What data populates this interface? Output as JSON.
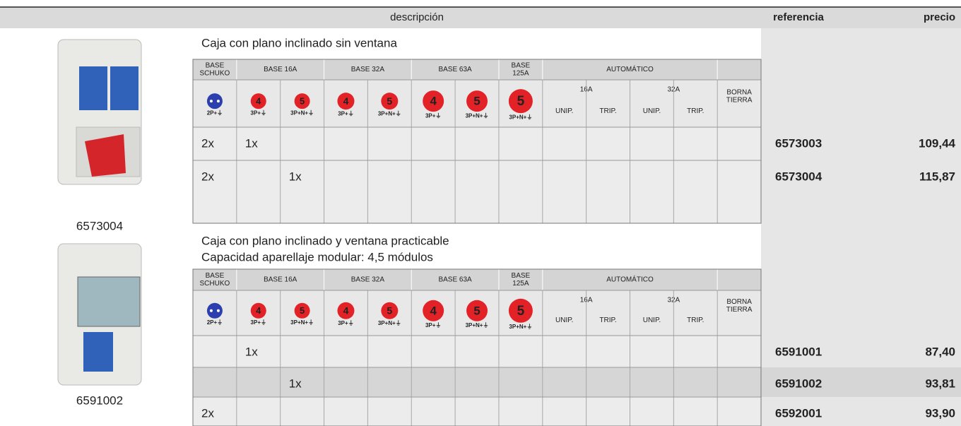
{
  "header": {
    "description": "descripción",
    "reference": "referencia",
    "price": "precio"
  },
  "products": [
    {
      "caption": "6573004"
    },
    {
      "caption": "6591002"
    }
  ],
  "sections": [
    {
      "title_lines": [
        "Caja con plano inclinado sin ventana"
      ],
      "groups": [
        {
          "lines": [
            "BASE",
            "SCHUKO"
          ],
          "span": 1
        },
        {
          "lines": [
            "BASE 16A"
          ],
          "span": 2
        },
        {
          "lines": [
            "BASE 32A"
          ],
          "span": 2
        },
        {
          "lines": [
            "BASE 63A"
          ],
          "span": 2
        },
        {
          "lines": [
            "BASE",
            "125A"
          ],
          "span": 1
        },
        {
          "lines": [
            "AUTOMÁTICO"
          ],
          "span": 4
        },
        {
          "lines": [
            "BORNA",
            "TIERRA"
          ],
          "span": 1
        }
      ],
      "icons": [
        {
          "number": null,
          "label": "2P+⏚"
        },
        {
          "number": "4",
          "label": "3P+⏚"
        },
        {
          "number": "5",
          "label": "3P+N+⏚"
        },
        {
          "number": "4",
          "label": "3P+⏚"
        },
        {
          "number": "5",
          "label": "3P+N+⏚"
        },
        {
          "number": "4",
          "label": "3P+⏚"
        },
        {
          "number": "5",
          "label": "3P+N+⏚"
        },
        {
          "number": "5",
          "label": "3P+N+⏚"
        }
      ],
      "auto_ratings": [
        "16A",
        "32A"
      ],
      "auto_poles": [
        "UNIP.",
        "TRIP.",
        "UNIP.",
        "TRIP."
      ],
      "rows": [
        {
          "cells": [
            "2x",
            "1x",
            null,
            null,
            null,
            null,
            null,
            null,
            null,
            null,
            null,
            null,
            null
          ],
          "reference": "6573003",
          "price": "109,44"
        },
        {
          "cells": [
            "2x",
            null,
            "1x",
            null,
            null,
            null,
            null,
            null,
            null,
            null,
            null,
            null,
            null
          ],
          "reference": "6573004",
          "price": "115,87"
        }
      ]
    },
    {
      "title_lines": [
        "Caja con plano inclinado y ventana practicable",
        "Capacidad aparellaje modular: 4,5 módulos"
      ],
      "groups": [
        {
          "lines": [
            "BASE",
            "SCHUKO"
          ],
          "span": 1
        },
        {
          "lines": [
            "BASE 16A"
          ],
          "span": 2
        },
        {
          "lines": [
            "BASE 32A"
          ],
          "span": 2
        },
        {
          "lines": [
            "BASE 63A"
          ],
          "span": 2
        },
        {
          "lines": [
            "BASE",
            "125A"
          ],
          "span": 1
        },
        {
          "lines": [
            "AUTOMÁTICO"
          ],
          "span": 4
        },
        {
          "lines": [
            "BORNA",
            "TIERRA"
          ],
          "span": 1
        }
      ],
      "icons": [
        {
          "number": null,
          "label": "2P+⏚"
        },
        {
          "number": "4",
          "label": "3P+⏚"
        },
        {
          "number": "5",
          "label": "3P+N+⏚"
        },
        {
          "number": "4",
          "label": "3P+⏚"
        },
        {
          "number": "5",
          "label": "3P+N+⏚"
        },
        {
          "number": "4",
          "label": "3P+⏚"
        },
        {
          "number": "5",
          "label": "3P+N+⏚"
        },
        {
          "number": "5",
          "label": "3P+N+⏚"
        }
      ],
      "auto_ratings": [
        "16A",
        "32A"
      ],
      "auto_poles": [
        "UNIP.",
        "TRIP.",
        "UNIP.",
        "TRIP."
      ],
      "rows": [
        {
          "cells": [
            null,
            "1x",
            null,
            null,
            null,
            null,
            null,
            null,
            null,
            null,
            null,
            null,
            null
          ],
          "reference": "6591001",
          "price": "87,40"
        },
        {
          "cells": [
            null,
            null,
            "1x",
            null,
            null,
            null,
            null,
            null,
            null,
            null,
            null,
            null,
            null
          ],
          "reference": "6591002",
          "price": "93,81"
        },
        {
          "cells": [
            "2x",
            null,
            null,
            null,
            null,
            null,
            null,
            null,
            null,
            null,
            null,
            null,
            null
          ],
          "reference": "6592001",
          "price": "93,90"
        }
      ]
    }
  ]
}
